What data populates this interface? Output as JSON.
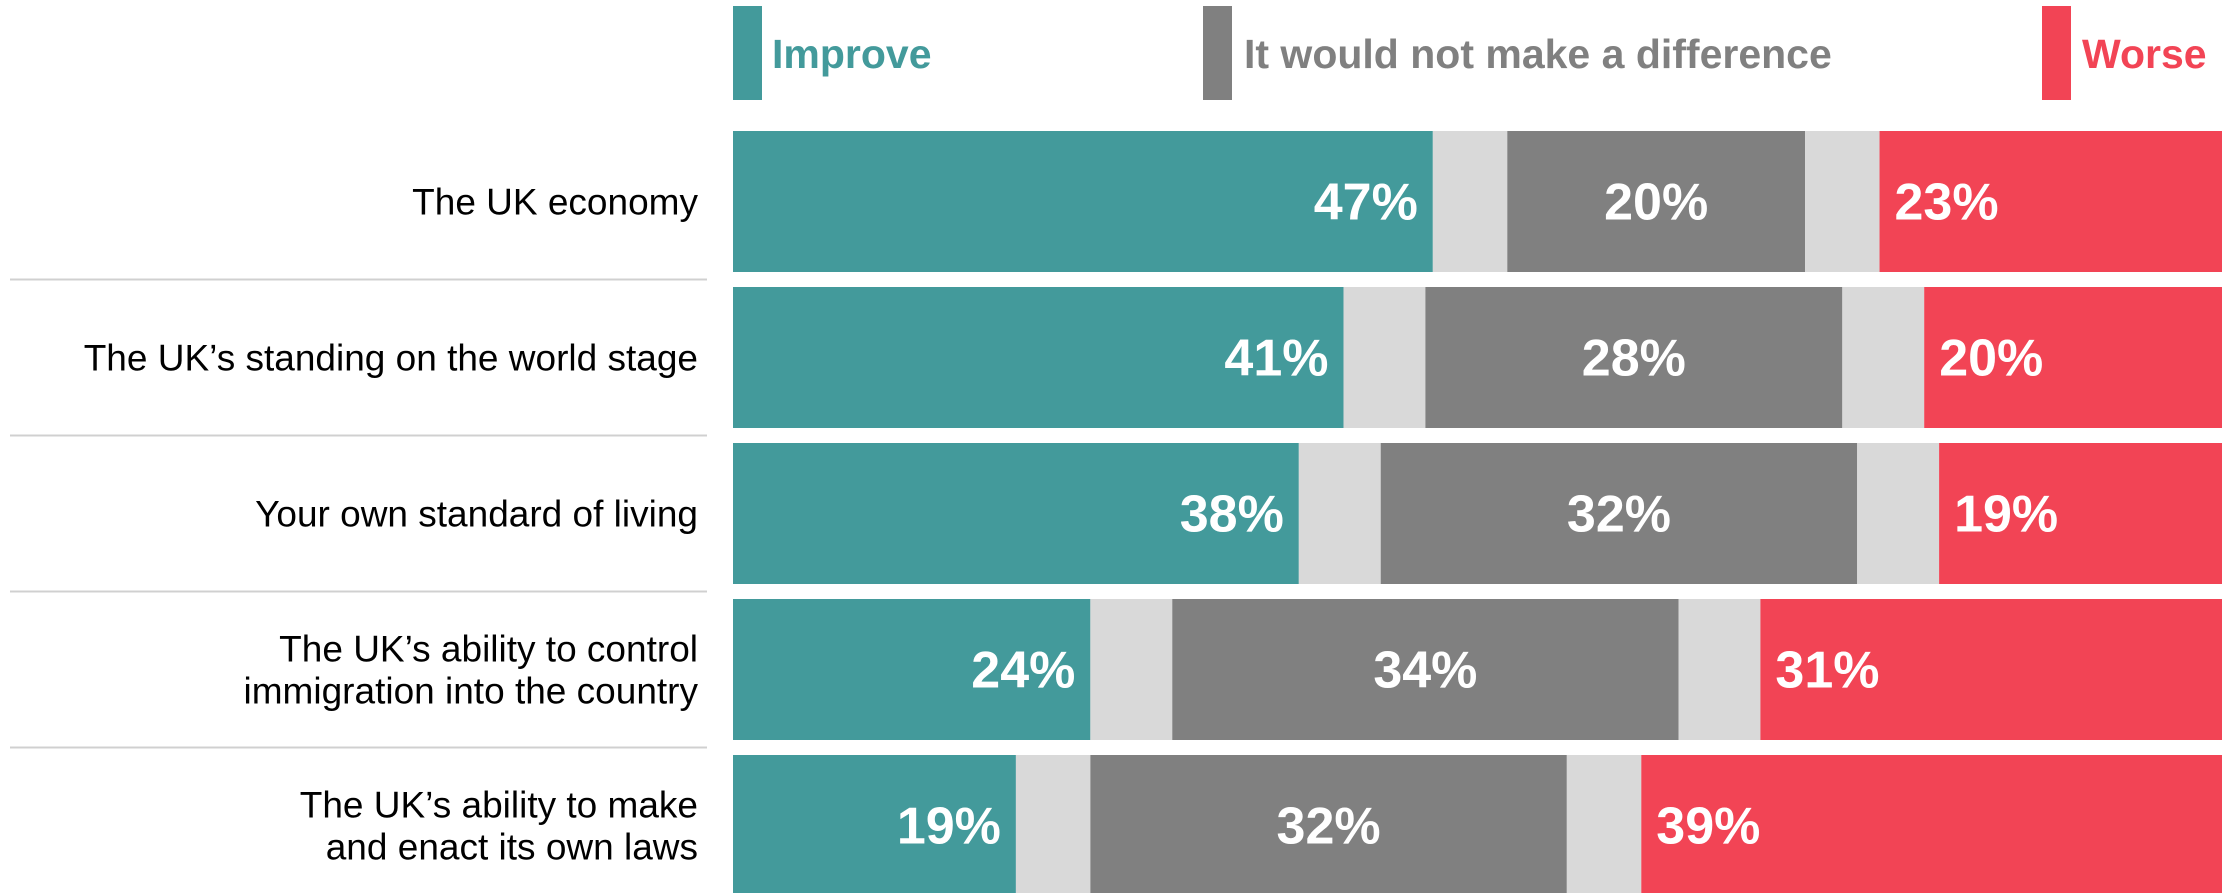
{
  "chart_data": {
    "type": "bar",
    "orientation": "horizontal",
    "stacked": true,
    "categories": [
      "The UK economy",
      "The UK’s standing on the world stage",
      "Your own standard of living",
      "The UK’s ability to control immigration into the country",
      "The UK’s ability to make and enact its own laws"
    ],
    "category_lines": [
      [
        "The UK economy"
      ],
      [
        "The UK’s standing on the world stage"
      ],
      [
        "Your own standard of living"
      ],
      [
        "The UK’s ability to control",
        "immigration into the country"
      ],
      [
        "The UK’s ability to make",
        "and enact its own laws"
      ]
    ],
    "series": [
      {
        "name": "Improve",
        "values": [
          47,
          41,
          38,
          24,
          19
        ],
        "labels": [
          "47%",
          "41%",
          "38%",
          "24%",
          "19%"
        ]
      },
      {
        "name": "It would not make a difference",
        "values": [
          20,
          28,
          32,
          34,
          32
        ],
        "labels": [
          "20%",
          "28%",
          "32%",
          "34%",
          "32%"
        ]
      },
      {
        "name": "Worse",
        "values": [
          23,
          20,
          19,
          31,
          39
        ],
        "labels": [
          "23%",
          "20%",
          "19%",
          "31%",
          "39%"
        ]
      }
    ],
    "remainder_values": [
      10,
      11,
      11,
      11,
      10
    ],
    "colors": {
      "improve": "#439a9b",
      "neutral": "#808080",
      "worse": "#f24455",
      "remainder": "#d9d9d9",
      "divider": "#d0d0d0"
    },
    "legend_position": "top",
    "grid": false,
    "xlim": [
      0,
      100
    ]
  }
}
